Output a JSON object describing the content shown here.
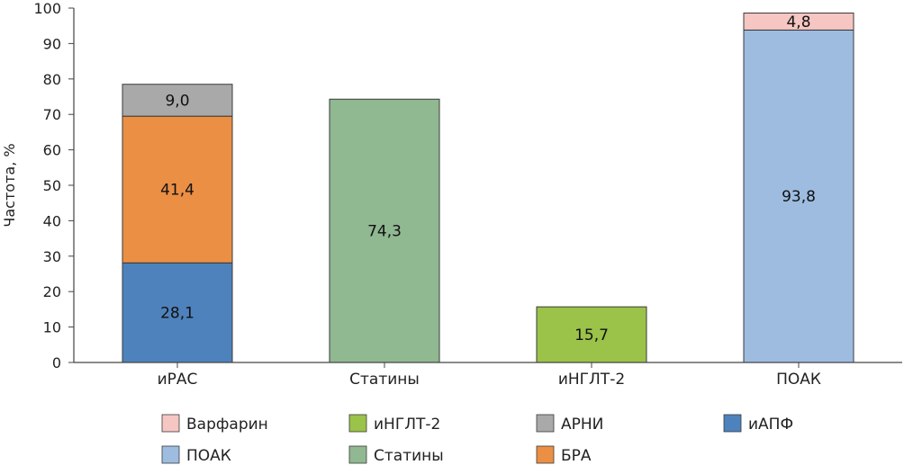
{
  "chart_data": {
    "type": "bar",
    "stacked": true,
    "ylabel": "Частота, %",
    "ylim": [
      0,
      100
    ],
    "yticks": [
      0,
      10,
      20,
      30,
      40,
      50,
      60,
      70,
      80,
      90,
      100
    ],
    "categories": [
      "иРАС",
      "Статины",
      "иНГЛТ-2",
      "ПОАК"
    ],
    "segments": [
      [
        {
          "series": "иАПФ",
          "value": 28.1,
          "label": "28,1"
        },
        {
          "series": "БРА",
          "value": 41.4,
          "label": "41,4"
        },
        {
          "series": "АРНИ",
          "value": 9.0,
          "label": "9,0"
        }
      ],
      [
        {
          "series": "Статины",
          "value": 74.3,
          "label": "74,3"
        }
      ],
      [
        {
          "series": "иНГЛТ-2",
          "value": 15.7,
          "label": "15,7"
        }
      ],
      [
        {
          "series": "ПОАК",
          "value": 93.8,
          "label": "93,8"
        },
        {
          "series": "Варфарин",
          "value": 4.8,
          "label": "4,8"
        }
      ]
    ],
    "series": [
      {
        "name": "Варфарин",
        "color": "#f5c6c2"
      },
      {
        "name": "иНГЛТ-2",
        "color": "#9bc249"
      },
      {
        "name": "АРНИ",
        "color": "#a9a9a9"
      },
      {
        "name": "иАПФ",
        "color": "#4e82bc"
      },
      {
        "name": "ПОАК",
        "color": "#9dbce0"
      },
      {
        "name": "Статины",
        "color": "#90b891"
      },
      {
        "name": "БРА",
        "color": "#eb8f45"
      }
    ],
    "legend": {
      "position": "bottom",
      "rows": [
        [
          "Варфарин",
          "иНГЛТ-2",
          "АРНИ",
          "иАПФ"
        ],
        [
          "ПОАК",
          "Статины",
          "БРА"
        ]
      ]
    },
    "grid": false
  }
}
